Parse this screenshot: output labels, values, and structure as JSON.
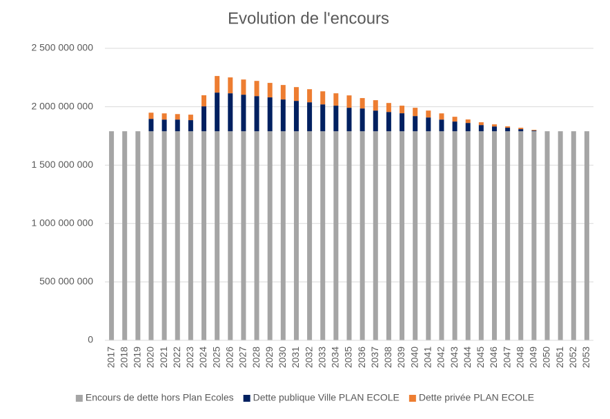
{
  "chart_data": {
    "type": "stacked_bar",
    "title": "Evolution de l'encours",
    "categories": [
      "2017",
      "2018",
      "2019",
      "2020",
      "2021",
      "2022",
      "2023",
      "2024",
      "2025",
      "2026",
      "2027",
      "2028",
      "2029",
      "2030",
      "2031",
      "2032",
      "2033",
      "2034",
      "2035",
      "2036",
      "2037",
      "2038",
      "2039",
      "2040",
      "2041",
      "2042",
      "2043",
      "2044",
      "2045",
      "2046",
      "2047",
      "2048",
      "2049",
      "2050",
      "2051",
      "2052",
      "2053"
    ],
    "series": [
      {
        "name": "Encours de dette hors Plan Ecoles",
        "color": "#a5a5a5",
        "values": [
          1790000000,
          1790000000,
          1790000000,
          1790000000,
          1790000000,
          1790000000,
          1790000000,
          1790000000,
          1790000000,
          1790000000,
          1790000000,
          1790000000,
          1790000000,
          1790000000,
          1790000000,
          1790000000,
          1790000000,
          1790000000,
          1790000000,
          1790000000,
          1790000000,
          1790000000,
          1790000000,
          1790000000,
          1790000000,
          1790000000,
          1790000000,
          1790000000,
          1790000000,
          1790000000,
          1790000000,
          1790000000,
          1790000000,
          1790000000,
          1790000000,
          1790000000,
          1790000000
        ]
      },
      {
        "name": "Dette publique Ville PLAN ECOLE",
        "color": "#002060",
        "values": [
          0,
          0,
          0,
          106000000,
          100000000,
          100000000,
          95000000,
          213000000,
          331000000,
          325000000,
          313000000,
          301000000,
          290000000,
          272000000,
          260000000,
          248000000,
          230000000,
          219000000,
          201000000,
          195000000,
          177000000,
          165000000,
          154000000,
          130000000,
          118000000,
          100000000,
          83000000,
          71000000,
          53000000,
          41000000,
          30000000,
          18000000,
          6000000,
          0,
          0,
          0,
          0
        ]
      },
      {
        "name": "Dette privée PLAN ECOLE",
        "color": "#ed7d31",
        "values": [
          0,
          0,
          0,
          53000000,
          53000000,
          47000000,
          47000000,
          95000000,
          142000000,
          136000000,
          130000000,
          130000000,
          124000000,
          124000000,
          118000000,
          112000000,
          112000000,
          106000000,
          106000000,
          89000000,
          89000000,
          77000000,
          65000000,
          71000000,
          59000000,
          53000000,
          41000000,
          30000000,
          24000000,
          18000000,
          12000000,
          12000000,
          6000000,
          0,
          0,
          0,
          0
        ]
      }
    ],
    "ylim": [
      0,
      2500000000
    ],
    "yticks": [
      0,
      {
        "value": 500000000,
        "label": "500 000 000"
      },
      {
        "value": 1000000000,
        "label": "1 000 000 000"
      },
      {
        "value": 1500000000,
        "label": "1 500 000 000"
      },
      {
        "value": 2000000000,
        "label": "2 000 000 000"
      },
      {
        "value": 2500000000,
        "label": "2 500 000 000"
      }
    ],
    "grid": true,
    "legend": "bottom"
  }
}
